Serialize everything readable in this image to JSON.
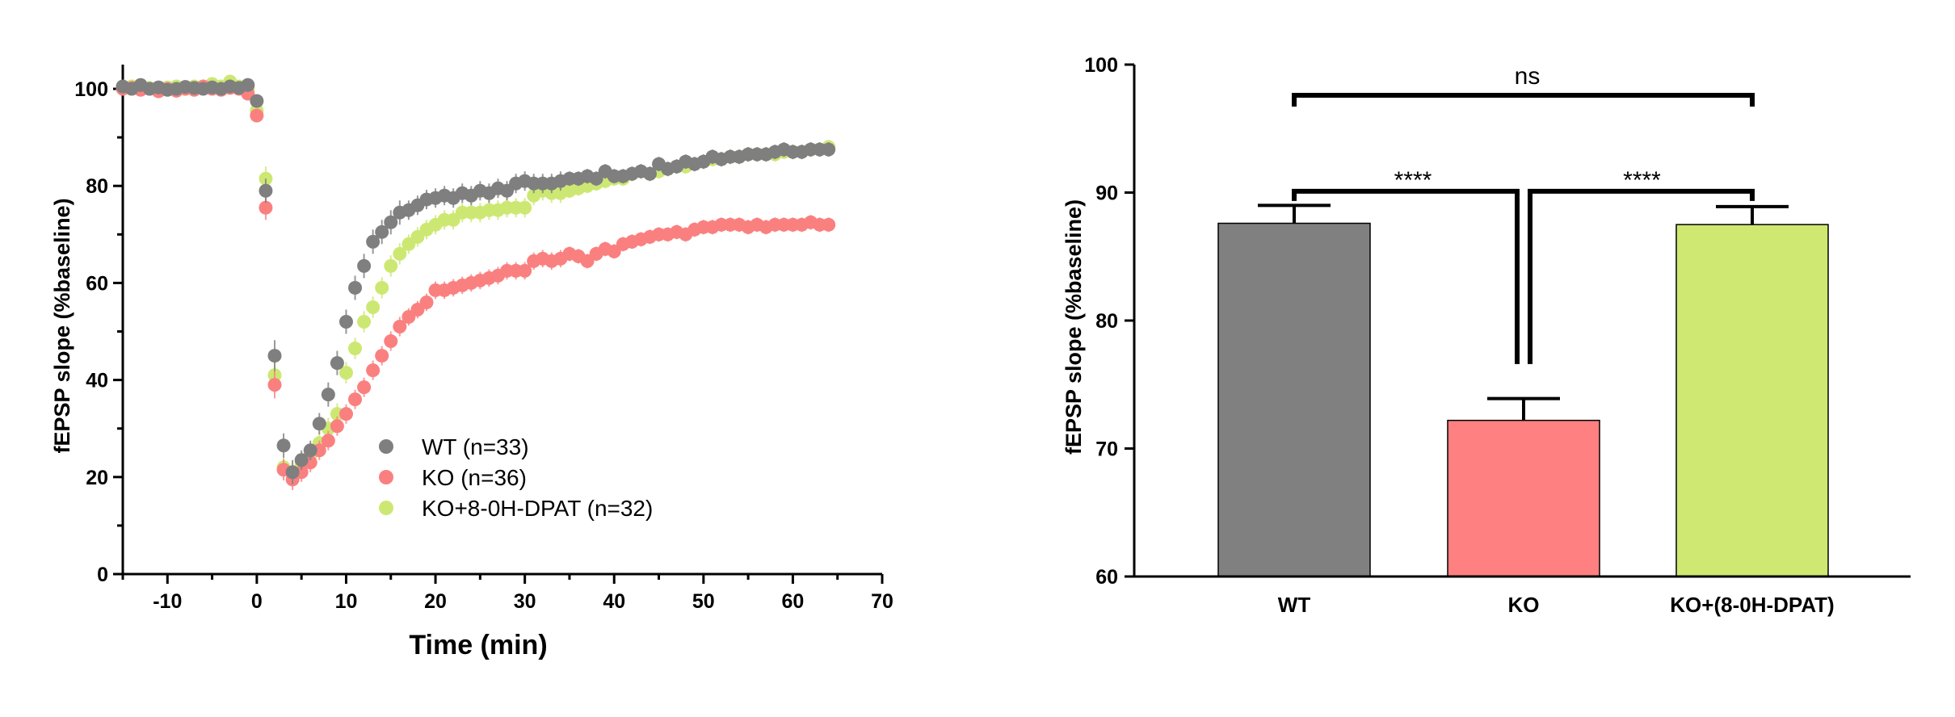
{
  "chart_data": [
    {
      "type": "scatter",
      "xlabel": "Time (min)",
      "ylabel": "fEPSP slope (%baseline)",
      "xlim": [
        -15,
        70
      ],
      "ylim": [
        0,
        105
      ],
      "xticks": [
        -10,
        0,
        10,
        20,
        30,
        40,
        50,
        60,
        70
      ],
      "yticks": [
        0,
        20,
        40,
        60,
        80,
        100
      ],
      "legend_position": "center",
      "series": [
        {
          "name": "WT (n=33)",
          "color": "#7f7f7f",
          "x": [
            -15,
            -14,
            -13,
            -12,
            -11,
            -10,
            -9,
            -8,
            -7,
            -6,
            -5,
            -4,
            -3,
            -2,
            -1,
            0,
            1,
            2,
            3,
            4,
            5,
            6,
            7,
            8,
            9,
            10,
            11,
            12,
            13,
            14,
            15,
            16,
            17,
            18,
            19,
            20,
            21,
            22,
            23,
            24,
            25,
            26,
            27,
            28,
            29,
            30,
            31,
            32,
            33,
            34,
            35,
            36,
            37,
            38,
            39,
            40,
            41,
            42,
            43,
            44,
            45,
            46,
            47,
            48,
            49,
            50,
            51,
            52,
            53,
            54,
            55,
            56,
            57,
            58,
            59,
            60,
            61,
            62,
            63,
            64
          ],
          "y": [
            100.5,
            100.0,
            100.8,
            100.0,
            100.3,
            99.8,
            100.0,
            100.4,
            100.2,
            100.0,
            100.3,
            100.0,
            100.5,
            100.2,
            100.8,
            97.5,
            79.0,
            45.0,
            26.5,
            21.0,
            23.5,
            25.5,
            31.0,
            37.0,
            43.5,
            52.0,
            59.0,
            63.5,
            68.5,
            70.5,
            72.5,
            74.5,
            75.0,
            76.0,
            77.2,
            77.5,
            78.0,
            77.5,
            78.5,
            78.0,
            79.0,
            78.5,
            79.5,
            79.0,
            80.5,
            81.0,
            80.5,
            80.5,
            80.5,
            81.0,
            81.5,
            81.5,
            82.0,
            81.5,
            83.0,
            82.0,
            82.0,
            82.5,
            83.0,
            82.5,
            84.5,
            83.5,
            84.0,
            85.0,
            84.5,
            85.0,
            86.0,
            85.5,
            86.0,
            86.0,
            86.5,
            86.5,
            86.5,
            87.0,
            87.5,
            87.0,
            87.0,
            87.5,
            87.5,
            87.5
          ],
          "error": [
            0.8,
            0.8,
            0.8,
            0.8,
            0.8,
            0.8,
            0.8,
            0.8,
            0.8,
            0.8,
            0.8,
            0.8,
            0.8,
            0.8,
            0.8,
            1.2,
            2.5,
            3.2,
            2.5,
            2.5,
            2.0,
            2.0,
            2.2,
            2.5,
            2.5,
            2.5,
            2.5,
            2.5,
            2.5,
            2.5,
            2.5,
            2.5,
            2.0,
            2.0,
            2.0,
            2.0,
            2.0,
            2.0,
            2.0,
            2.0,
            2.0,
            2.0,
            2.0,
            2.0,
            2.0,
            2.0,
            2.0,
            2.0,
            2.0,
            2.0,
            1.5,
            1.5,
            1.5,
            1.5,
            1.5,
            1.5,
            1.5,
            1.5,
            1.5,
            1.5,
            1.5,
            1.5,
            1.5,
            1.5,
            1.5,
            1.5,
            1.5,
            1.5,
            1.5,
            1.5,
            1.5,
            1.5,
            1.5,
            1.5,
            1.5,
            1.5,
            1.5,
            1.5,
            1.5,
            1.5
          ]
        },
        {
          "name": "KO (n=36)",
          "color": "#fa8080",
          "x": [
            -15,
            -14,
            -13,
            -12,
            -11,
            -10,
            -9,
            -8,
            -7,
            -6,
            -5,
            -4,
            -3,
            -2,
            -1,
            0,
            1,
            2,
            3,
            4,
            5,
            6,
            7,
            8,
            9,
            10,
            11,
            12,
            13,
            14,
            15,
            16,
            17,
            18,
            19,
            20,
            21,
            22,
            23,
            24,
            25,
            26,
            27,
            28,
            29,
            30,
            31,
            32,
            33,
            34,
            35,
            36,
            37,
            38,
            39,
            40,
            41,
            42,
            43,
            44,
            45,
            46,
            47,
            48,
            49,
            50,
            51,
            52,
            53,
            54,
            55,
            56,
            57,
            58,
            59,
            60,
            61,
            62,
            63,
            64
          ],
          "y": [
            100.0,
            100.2,
            99.8,
            100.0,
            99.5,
            100.0,
            99.6,
            100.0,
            99.8,
            100.5,
            100.0,
            99.8,
            100.2,
            100.0,
            99.0,
            94.5,
            75.5,
            39.0,
            21.5,
            19.5,
            21.0,
            23.0,
            25.5,
            27.5,
            30.5,
            33.0,
            36.0,
            38.5,
            42.0,
            45.0,
            48.0,
            51.0,
            53.0,
            54.5,
            56.0,
            58.5,
            58.5,
            59.0,
            59.5,
            60.0,
            60.5,
            61.0,
            61.5,
            62.5,
            62.5,
            62.5,
            64.5,
            65.0,
            64.5,
            65.0,
            66.0,
            65.5,
            64.5,
            66.0,
            67.0,
            66.5,
            68.0,
            68.5,
            69.0,
            69.5,
            70.0,
            70.0,
            70.5,
            70.0,
            71.0,
            71.5,
            71.5,
            72.0,
            72.0,
            72.0,
            71.5,
            72.0,
            71.5,
            72.0,
            72.0,
            72.0,
            72.0,
            72.5,
            72.0,
            72.0
          ],
          "error": [
            0.8,
            0.8,
            0.8,
            0.8,
            0.8,
            0.8,
            0.8,
            0.8,
            0.8,
            0.8,
            0.8,
            0.8,
            0.8,
            0.8,
            0.8,
            1.2,
            2.5,
            2.8,
            2.2,
            2.2,
            2.0,
            2.0,
            2.0,
            2.0,
            2.0,
            2.0,
            2.0,
            2.0,
            2.0,
            2.0,
            2.0,
            2.0,
            1.8,
            1.8,
            1.8,
            1.8,
            1.8,
            1.8,
            1.8,
            1.8,
            1.8,
            1.8,
            1.8,
            1.8,
            1.8,
            1.8,
            1.8,
            1.8,
            1.8,
            1.8,
            1.5,
            1.5,
            1.5,
            1.5,
            1.5,
            1.5,
            1.5,
            1.5,
            1.5,
            1.5,
            1.5,
            1.5,
            1.5,
            1.5,
            1.5,
            1.5,
            1.5,
            1.5,
            1.5,
            1.5,
            1.5,
            1.5,
            1.5,
            1.5,
            1.5,
            1.5,
            1.5,
            1.5,
            1.5,
            1.5
          ]
        },
        {
          "name": "KO+8-0H-DPAT (n=32)",
          "color": "#cde872",
          "x": [
            -15,
            -14,
            -13,
            -12,
            -11,
            -10,
            -9,
            -8,
            -7,
            -6,
            -5,
            -4,
            -3,
            -2,
            -1,
            0,
            1,
            2,
            3,
            4,
            5,
            6,
            7,
            8,
            9,
            10,
            11,
            12,
            13,
            14,
            15,
            16,
            17,
            18,
            19,
            20,
            21,
            22,
            23,
            24,
            25,
            26,
            27,
            28,
            29,
            30,
            31,
            32,
            33,
            34,
            35,
            36,
            37,
            38,
            39,
            40,
            41,
            42,
            43,
            44,
            45,
            46,
            47,
            48,
            49,
            50,
            51,
            52,
            53,
            54,
            55,
            56,
            57,
            58,
            59,
            60,
            61,
            62,
            63,
            64
          ],
          "y": [
            100.2,
            100.5,
            100.0,
            100.2,
            100.0,
            100.3,
            100.5,
            100.0,
            100.5,
            100.2,
            101.0,
            100.5,
            101.5,
            100.5,
            100.0,
            95.5,
            81.5,
            41.0,
            22.0,
            21.0,
            22.5,
            24.5,
            27.0,
            30.0,
            33.0,
            41.5,
            46.5,
            52.0,
            55.0,
            59.0,
            63.5,
            66.0,
            68.0,
            69.5,
            71.0,
            72.0,
            73.0,
            73.0,
            74.5,
            74.5,
            74.5,
            75.0,
            75.0,
            75.5,
            75.5,
            75.5,
            78.0,
            79.0,
            78.5,
            78.5,
            79.0,
            79.5,
            80.0,
            80.5,
            81.0,
            81.5,
            81.5,
            82.5,
            83.0,
            82.5,
            83.0,
            83.5,
            84.0,
            84.0,
            84.5,
            85.0,
            85.5,
            85.5,
            86.0,
            86.0,
            86.5,
            86.5,
            86.5,
            86.5,
            87.0,
            87.0,
            87.0,
            87.5,
            87.5,
            88.0
          ],
          "error": [
            0.8,
            0.8,
            0.8,
            0.8,
            0.8,
            0.8,
            0.8,
            0.8,
            0.8,
            0.8,
            0.8,
            0.8,
            0.8,
            0.8,
            0.8,
            1.2,
            2.5,
            3.0,
            2.2,
            2.2,
            2.0,
            2.0,
            2.2,
            2.2,
            2.2,
            2.2,
            2.2,
            2.2,
            2.2,
            2.2,
            2.2,
            2.2,
            2.0,
            2.0,
            2.0,
            2.0,
            2.0,
            2.0,
            2.0,
            2.0,
            2.0,
            2.0,
            2.0,
            2.0,
            2.0,
            2.0,
            2.0,
            2.0,
            2.0,
            2.0,
            1.5,
            1.5,
            1.5,
            1.5,
            1.5,
            1.5,
            1.5,
            1.5,
            1.5,
            1.5,
            1.5,
            1.5,
            1.5,
            1.5,
            1.5,
            1.5,
            1.5,
            1.5,
            1.5,
            1.5,
            1.5,
            1.5,
            1.5,
            1.5,
            1.5,
            1.5,
            1.5,
            1.5,
            1.5,
            1.5
          ]
        }
      ]
    },
    {
      "type": "bar",
      "ylabel": "fEPSP slope (%baseline)",
      "ylim": [
        60,
        100
      ],
      "yticks": [
        60,
        70,
        80,
        90,
        100
      ],
      "categories": [
        "WT",
        "KO",
        "KO+(8-0H-DPAT)"
      ],
      "values": [
        87.6,
        72.2,
        87.5
      ],
      "errors": [
        1.4,
        1.7,
        1.4
      ],
      "colors": [
        "#808080",
        "#ff8080",
        "#cfe872"
      ],
      "significance": [
        {
          "groups": [
            0,
            1
          ],
          "label": "****"
        },
        {
          "groups": [
            1,
            2
          ],
          "label": "****"
        },
        {
          "groups": [
            0,
            2
          ],
          "label": "ns"
        }
      ]
    }
  ]
}
